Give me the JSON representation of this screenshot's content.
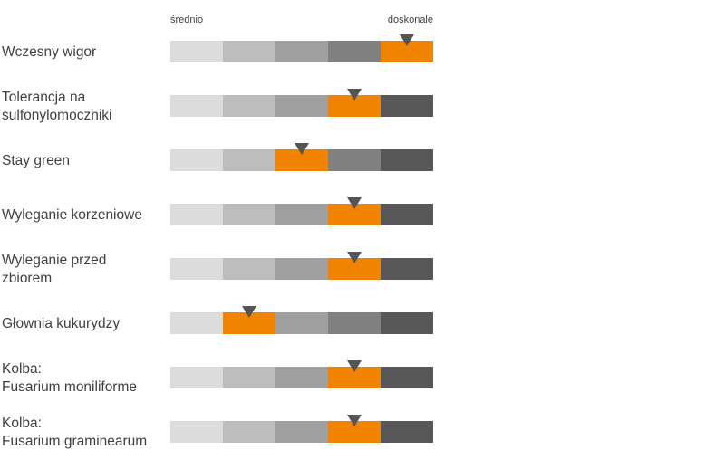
{
  "chart_data": {
    "type": "rating-scale",
    "scale": {
      "low_label": "średnio",
      "high_label": "doskonale",
      "levels": 5
    },
    "segment_colors": [
      "#dcdcdc",
      "#bdbdbd",
      "#a0a0a0",
      "#808080",
      "#585858"
    ],
    "highlight_color": "#f08300",
    "marker_color": "#555555",
    "rows": [
      {
        "label_lines": [
          "Wczesny wigor"
        ],
        "value": 5
      },
      {
        "label_lines": [
          "Tolerancja na",
          "sulfonylomoczniki"
        ],
        "value": 4
      },
      {
        "label_lines": [
          "Stay green"
        ],
        "value": 3
      },
      {
        "label_lines": [
          "Wyleganie korzeniowe"
        ],
        "value": 4
      },
      {
        "label_lines": [
          "Wyleganie przed",
          "zbiorem"
        ],
        "value": 4
      },
      {
        "label_lines": [
          "Głownia kukurydzy"
        ],
        "value": 2
      },
      {
        "label_lines": [
          "Kolba:",
          "Fusarium moniliforme"
        ],
        "value": 4
      },
      {
        "label_lines": [
          "Kolba:",
          "Fusarium graminearum"
        ],
        "value": 4
      }
    ]
  }
}
